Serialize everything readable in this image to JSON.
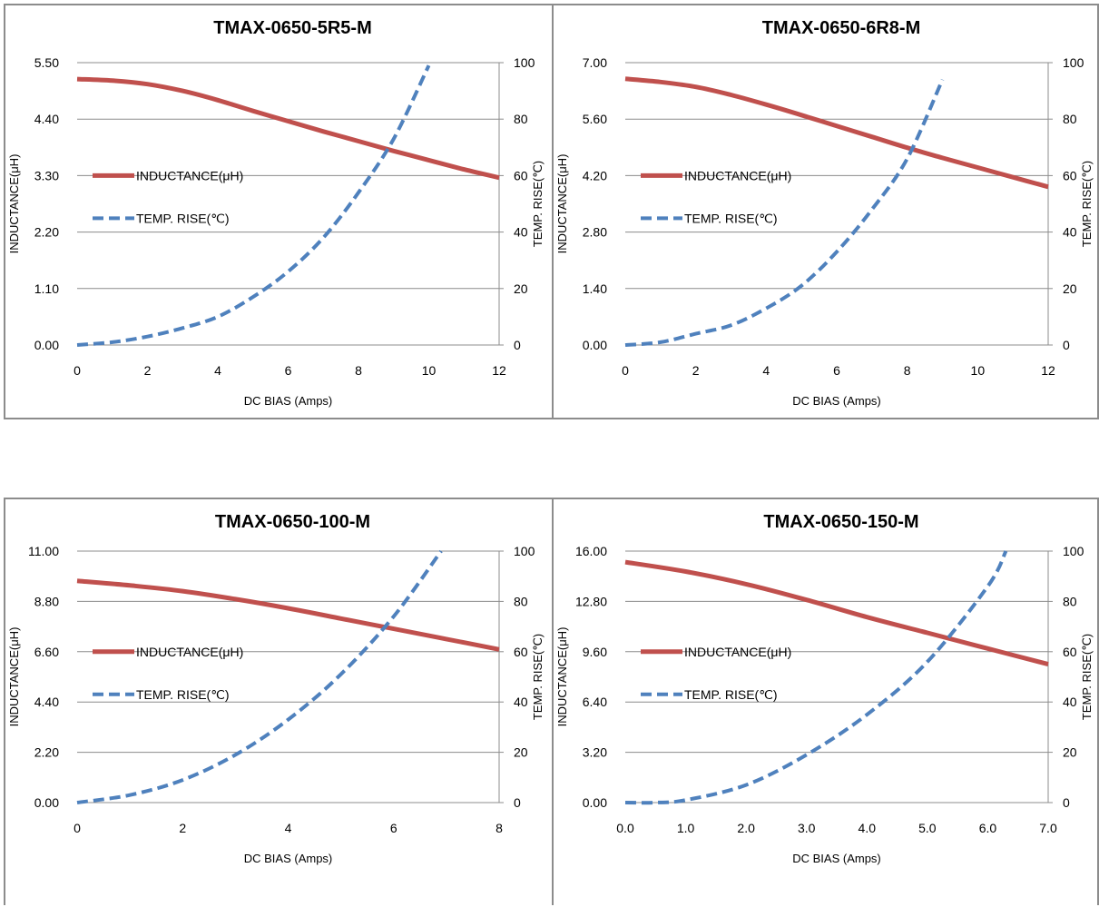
{
  "colors": {
    "inductance": "#c0504d",
    "temp_rise": "#4f81bd",
    "grid": "#8c8c8c",
    "frame": "#8c8c8c"
  },
  "chart_data": [
    {
      "type": "line",
      "title": "TMAX-0650-5R5-M",
      "xlabel": "DC BIAS  (Amps)",
      "ylabel": "INDUCTANCE(μH)",
      "y2label": "TEMP. RISE(℃)",
      "xlim": [
        0,
        12
      ],
      "ylim": [
        0,
        5.5
      ],
      "y2lim": [
        0,
        100
      ],
      "x_ticks": [
        "0",
        "2",
        "4",
        "6",
        "8",
        "10",
        "12"
      ],
      "y_ticks": [
        "0.00",
        "1.10",
        "2.20",
        "3.30",
        "4.40",
        "5.50"
      ],
      "y2_ticks": [
        "0",
        "20",
        "40",
        "60",
        "80",
        "100"
      ],
      "grid": "horizontal",
      "legend_position": "left",
      "series": [
        {
          "name": "INDUCTANCE(μH)",
          "axis": "left",
          "style": "solid",
          "x": [
            0,
            1,
            2,
            3,
            4,
            5,
            6,
            7,
            8,
            9,
            10,
            11,
            12
          ],
          "values": [
            5.18,
            5.15,
            5.08,
            4.95,
            4.77,
            4.56,
            4.36,
            4.16,
            3.97,
            3.78,
            3.6,
            3.42,
            3.26
          ]
        },
        {
          "name": "TEMP. RISE(℃)",
          "axis": "right",
          "style": "dashed",
          "x": [
            0,
            1,
            2,
            3,
            4,
            5,
            6,
            7,
            8,
            9,
            10
          ],
          "values": [
            0,
            1,
            3,
            6,
            10,
            17,
            26,
            38,
            54,
            73,
            99
          ]
        }
      ]
    },
    {
      "type": "line",
      "title": "TMAX-0650-6R8-M",
      "xlabel": "DC BIAS  (Amps)",
      "ylabel": "INDUCTANCE(μH)",
      "y2label": "TEMP. RISE(℃)",
      "xlim": [
        0,
        12
      ],
      "ylim": [
        0,
        7
      ],
      "y2lim": [
        0,
        100
      ],
      "x_ticks": [
        "0",
        "2",
        "4",
        "6",
        "8",
        "10",
        "12"
      ],
      "y_ticks": [
        "0.00",
        "1.40",
        "2.80",
        "4.20",
        "5.60",
        "7.00"
      ],
      "y2_ticks": [
        "0",
        "20",
        "40",
        "60",
        "80",
        "100"
      ],
      "grid": "horizontal",
      "legend_position": "left",
      "series": [
        {
          "name": "INDUCTANCE(μH)",
          "axis": "left",
          "style": "solid",
          "x": [
            0,
            1,
            2,
            3,
            4,
            5,
            6,
            7,
            8,
            9,
            10,
            11,
            12
          ],
          "values": [
            6.6,
            6.52,
            6.4,
            6.2,
            5.96,
            5.7,
            5.43,
            5.16,
            4.89,
            4.64,
            4.4,
            4.16,
            3.92
          ]
        },
        {
          "name": "TEMP. RISE(℃)",
          "axis": "right",
          "style": "dashed",
          "x": [
            0,
            1,
            2,
            3,
            4,
            5,
            6,
            7,
            8,
            9
          ],
          "values": [
            0,
            1,
            4,
            7,
            13,
            21,
            33,
            48,
            66,
            94
          ]
        }
      ]
    },
    {
      "type": "line",
      "title": "TMAX-0650-100-M",
      "xlabel": "DC BIAS  (Amps)",
      "ylabel": "INDUCTANCE(μH)",
      "y2label": "TEMP. RISE(℃)",
      "xlim": [
        0,
        8
      ],
      "ylim": [
        0,
        11
      ],
      "y2lim": [
        0,
        100
      ],
      "x_ticks": [
        "0",
        "2",
        "4",
        "6",
        "8"
      ],
      "y_ticks": [
        "0.00",
        "2.20",
        "4.40",
        "6.60",
        "8.80",
        "11.00"
      ],
      "y2_ticks": [
        "0",
        "20",
        "40",
        "60",
        "80",
        "100"
      ],
      "grid": "horizontal",
      "legend_position": "left",
      "series": [
        {
          "name": "INDUCTANCE(μH)",
          "axis": "left",
          "style": "solid",
          "x": [
            0,
            1,
            2,
            3,
            4,
            5,
            6,
            7,
            8
          ],
          "values": [
            9.7,
            9.5,
            9.25,
            8.9,
            8.5,
            8.05,
            7.6,
            7.15,
            6.7
          ]
        },
        {
          "name": "TEMP. RISE(℃)",
          "axis": "right",
          "style": "dashed",
          "x": [
            0,
            1,
            2,
            3,
            4,
            5,
            6,
            6.9
          ],
          "values": [
            0,
            3,
            9,
            19,
            33,
            51,
            74,
            100
          ]
        }
      ]
    },
    {
      "type": "line",
      "title": "TMAX-0650-150-M",
      "xlabel": "DC BIAS  (Amps)",
      "ylabel": "INDUCTANCE(μH)",
      "y2label": "TEMP. RISE(℃)",
      "xlim": [
        0,
        7
      ],
      "ylim": [
        0,
        16
      ],
      "y2lim": [
        0,
        100
      ],
      "x_ticks": [
        "0.0",
        "1.0",
        "2.0",
        "3.0",
        "4.0",
        "5.0",
        "6.0",
        "7.0"
      ],
      "y_ticks": [
        "0.00",
        "3.20",
        "6.40",
        "9.60",
        "12.80",
        "16.00"
      ],
      "y2_ticks": [
        "0",
        "20",
        "40",
        "60",
        "80",
        "100"
      ],
      "grid": "horizontal",
      "legend_position": "left",
      "series": [
        {
          "name": "INDUCTANCE(μH)",
          "axis": "left",
          "style": "solid",
          "x": [
            0,
            1,
            2,
            3,
            4,
            5,
            6,
            7
          ],
          "values": [
            15.3,
            14.7,
            13.9,
            12.9,
            11.8,
            10.8,
            9.8,
            8.8
          ]
        },
        {
          "name": "TEMP. RISE(℃)",
          "axis": "right",
          "style": "dashed",
          "x": [
            0,
            0.5,
            1,
            2,
            3,
            4,
            5,
            6,
            6.3
          ],
          "values": [
            0,
            0,
            1,
            7,
            19,
            35,
            56,
            86,
            100
          ]
        }
      ]
    }
  ]
}
